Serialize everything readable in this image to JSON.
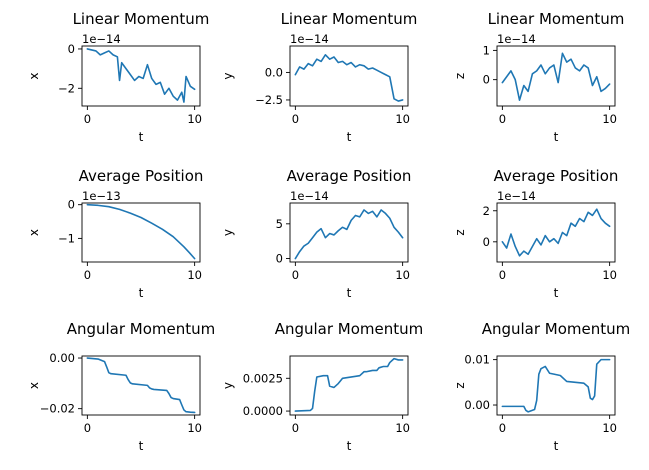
{
  "colors": {
    "series": "#1f77b4",
    "axes": "#000000",
    "background": "#ffffff"
  },
  "chart_data": [
    {
      "type": "line",
      "title": "Linear Momentum",
      "xlabel": "t",
      "ylabel": "x",
      "offset_label": "1e−14",
      "xlim": [
        -0.5,
        10.5
      ],
      "ylim": [
        -2.9,
        0.15
      ],
      "xticks": [
        0,
        10
      ],
      "xtick_labels": [
        "0",
        "10"
      ],
      "yticks": [
        0,
        -2
      ],
      "ytick_labels": [
        "0",
        "−2"
      ],
      "grid": false,
      "series": [
        {
          "x": [
            0,
            0.4,
            0.8,
            1.2,
            1.6,
            2.0,
            2.4,
            2.8,
            3.0,
            3.2,
            3.6,
            4.0,
            4.4,
            4.8,
            5.2,
            5.6,
            6.0,
            6.4,
            6.8,
            7.2,
            7.6,
            8.0,
            8.4,
            8.8,
            9.0,
            9.2,
            9.6,
            10.0
          ],
          "y": [
            0.0,
            -0.05,
            -0.1,
            -0.3,
            -0.2,
            -0.1,
            -0.3,
            -0.4,
            -1.6,
            -0.7,
            -1.0,
            -1.3,
            -1.6,
            -1.4,
            -1.5,
            -0.8,
            -1.5,
            -1.8,
            -1.7,
            -2.3,
            -2.0,
            -2.4,
            -2.6,
            -2.2,
            -2.7,
            -1.4,
            -1.9,
            -2.05
          ]
        }
      ]
    },
    {
      "type": "line",
      "title": "Linear Momentum",
      "xlabel": "t",
      "ylabel": "y",
      "offset_label": "1e−14",
      "xlim": [
        -0.5,
        10.5
      ],
      "ylim": [
        -3.05,
        2.4
      ],
      "xticks": [
        0,
        10
      ],
      "xtick_labels": [
        "0",
        "10"
      ],
      "yticks": [
        0,
        -2.5
      ],
      "ytick_labels": [
        "0.0",
        "−2.5"
      ],
      "grid": false,
      "series": [
        {
          "x": [
            0,
            0.4,
            0.8,
            1.2,
            1.6,
            2.0,
            2.4,
            2.8,
            3.2,
            3.6,
            4.0,
            4.4,
            4.8,
            5.2,
            5.6,
            6.0,
            6.4,
            6.8,
            7.2,
            7.6,
            8.0,
            8.4,
            8.8,
            9.2,
            9.6,
            10.0
          ],
          "y": [
            -0.2,
            0.5,
            0.3,
            0.8,
            0.6,
            1.2,
            1.0,
            1.6,
            1.2,
            1.4,
            0.9,
            1.0,
            0.7,
            0.9,
            0.5,
            0.7,
            0.6,
            0.3,
            0.4,
            0.2,
            0.0,
            -0.2,
            -0.4,
            -2.4,
            -2.6,
            -2.5
          ]
        }
      ]
    },
    {
      "type": "line",
      "title": "Linear Momentum",
      "xlabel": "t",
      "ylabel": "z",
      "offset_label": "1e−14",
      "xlim": [
        -0.5,
        10.5
      ],
      "ylim": [
        -0.9,
        1.15
      ],
      "xticks": [
        0,
        10
      ],
      "xtick_labels": [
        "0",
        "10"
      ],
      "yticks": [
        1,
        0
      ],
      "ytick_labels": [
        "1",
        "0"
      ],
      "grid": false,
      "series": [
        {
          "x": [
            0,
            0.4,
            0.8,
            1.2,
            1.6,
            2.0,
            2.4,
            2.8,
            3.2,
            3.6,
            4.0,
            4.4,
            4.8,
            5.2,
            5.6,
            6.0,
            6.4,
            6.8,
            7.2,
            7.6,
            8.0,
            8.4,
            8.8,
            9.2,
            9.6,
            10.0
          ],
          "y": [
            -0.1,
            0.1,
            0.3,
            0.0,
            -0.7,
            -0.2,
            -0.4,
            0.2,
            0.3,
            0.5,
            0.2,
            0.4,
            0.5,
            -0.1,
            0.9,
            0.6,
            0.7,
            0.4,
            0.3,
            0.5,
            0.4,
            -0.2,
            0.1,
            -0.4,
            -0.3,
            -0.15
          ]
        }
      ]
    },
    {
      "type": "line",
      "title": "Average Position",
      "xlabel": "t",
      "ylabel": "x",
      "offset_label": "1e−13",
      "xlim": [
        -0.5,
        10.5
      ],
      "ylim": [
        -1.7,
        0.05
      ],
      "xticks": [
        0,
        10
      ],
      "xtick_labels": [
        "0",
        "10"
      ],
      "yticks": [
        0,
        -1
      ],
      "ytick_labels": [
        "0",
        "−1"
      ],
      "grid": false,
      "series": [
        {
          "x": [
            0,
            1,
            2,
            3,
            4,
            5,
            6,
            7,
            8,
            9,
            9.5,
            10
          ],
          "y": [
            0.0,
            -0.02,
            -0.06,
            -0.14,
            -0.25,
            -0.38,
            -0.55,
            -0.73,
            -0.95,
            -1.25,
            -1.42,
            -1.6
          ]
        }
      ]
    },
    {
      "type": "line",
      "title": "Average Position",
      "xlabel": "t",
      "ylabel": "y",
      "offset_label": "1e−14",
      "xlim": [
        -0.5,
        10.5
      ],
      "ylim": [
        -0.5,
        8.0
      ],
      "xticks": [
        0,
        10
      ],
      "xtick_labels": [
        "0",
        "10"
      ],
      "yticks": [
        0,
        5
      ],
      "ytick_labels": [
        "0",
        "5"
      ],
      "grid": false,
      "series": [
        {
          "x": [
            0,
            0.4,
            0.8,
            1.2,
            1.6,
            2.0,
            2.4,
            2.8,
            3.2,
            3.6,
            4.0,
            4.4,
            4.8,
            5.2,
            5.6,
            6.0,
            6.4,
            6.8,
            7.2,
            7.6,
            8.0,
            8.4,
            8.8,
            9.2,
            9.6,
            10.0
          ],
          "y": [
            0.0,
            1.0,
            1.8,
            2.2,
            3.0,
            3.8,
            4.3,
            3.0,
            3.6,
            3.4,
            4.0,
            4.5,
            4.2,
            5.5,
            6.2,
            6.0,
            7.0,
            6.5,
            6.8,
            6.0,
            7.0,
            6.5,
            5.8,
            4.5,
            3.8,
            3.0
          ]
        }
      ]
    },
    {
      "type": "line",
      "title": "Average Position",
      "xlabel": "t",
      "ylabel": "z",
      "offset_label": "1e−14",
      "xlim": [
        -0.5,
        10.5
      ],
      "ylim": [
        -1.3,
        2.5
      ],
      "xticks": [
        0,
        10
      ],
      "xtick_labels": [
        "0",
        "10"
      ],
      "yticks": [
        2,
        0
      ],
      "ytick_labels": [
        "2",
        "0"
      ],
      "grid": false,
      "series": [
        {
          "x": [
            0,
            0.4,
            0.8,
            1.2,
            1.6,
            2.0,
            2.4,
            2.8,
            3.2,
            3.6,
            4.0,
            4.4,
            4.8,
            5.2,
            5.6,
            6.0,
            6.4,
            6.8,
            7.2,
            7.6,
            8.0,
            8.4,
            8.8,
            9.2,
            9.6,
            10.0
          ],
          "y": [
            0.0,
            -0.4,
            0.5,
            -0.3,
            -0.9,
            -0.6,
            -0.8,
            -0.3,
            0.2,
            -0.2,
            0.4,
            0.0,
            0.2,
            -0.1,
            0.6,
            0.4,
            1.2,
            1.0,
            1.5,
            1.3,
            1.9,
            1.7,
            2.1,
            1.5,
            1.2,
            1.0
          ]
        }
      ]
    },
    {
      "type": "line",
      "title": "Angular Momentum",
      "xlabel": "t",
      "ylabel": "x",
      "offset_label": "",
      "xlim": [
        -0.5,
        10.5
      ],
      "ylim": [
        -0.0225,
        0.0008
      ],
      "xticks": [
        0,
        10
      ],
      "xtick_labels": [
        "0",
        "10"
      ],
      "yticks": [
        0.0,
        -0.02
      ],
      "ytick_labels": [
        "0.00",
        "−0.02"
      ],
      "grid": false,
      "series": [
        {
          "x": [
            0,
            1.0,
            1.6,
            1.8,
            2.0,
            2.2,
            3.6,
            3.8,
            4.0,
            4.2,
            5.6,
            5.8,
            6.0,
            6.2,
            7.4,
            7.6,
            7.8,
            8.0,
            8.6,
            8.8,
            9.0,
            9.2,
            9.6,
            10.0
          ],
          "y": [
            0.0,
            -0.0004,
            -0.0014,
            -0.0035,
            -0.0058,
            -0.0062,
            -0.0068,
            -0.0085,
            -0.0098,
            -0.0102,
            -0.0108,
            -0.0118,
            -0.0122,
            -0.0124,
            -0.0128,
            -0.014,
            -0.0156,
            -0.016,
            -0.0164,
            -0.0185,
            -0.0205,
            -0.0212,
            -0.0214,
            -0.0215
          ]
        }
      ]
    },
    {
      "type": "line",
      "title": "Angular Momentum",
      "xlabel": "t",
      "ylabel": "y",
      "offset_label": "",
      "xlim": [
        -0.5,
        10.5
      ],
      "ylim": [
        -0.0003,
        0.0042
      ],
      "xticks": [
        0,
        10
      ],
      "xtick_labels": [
        "0",
        "10"
      ],
      "yticks": [
        0.0025,
        0.0
      ],
      "ytick_labels": [
        "0.0025",
        "0.0000"
      ],
      "grid": false,
      "series": [
        {
          "x": [
            0,
            1.4,
            1.6,
            1.8,
            2.0,
            2.6,
            3.0,
            3.2,
            3.6,
            4.0,
            4.4,
            6.0,
            6.4,
            6.6,
            7.2,
            7.6,
            7.8,
            8.2,
            8.6,
            8.8,
            9.2,
            9.6,
            10.0
          ],
          "y": [
            0.0,
            5e-05,
            0.0002,
            0.0015,
            0.0026,
            0.0027,
            0.0027,
            0.0019,
            0.0018,
            0.0021,
            0.0025,
            0.0027,
            0.003,
            0.003,
            0.0031,
            0.0031,
            0.0033,
            0.0034,
            0.0034,
            0.0037,
            0.004,
            0.0039,
            0.0039
          ]
        }
      ]
    },
    {
      "type": "line",
      "title": "Angular Momentum",
      "xlabel": "t",
      "ylabel": "z",
      "offset_label": "",
      "xlim": [
        -0.5,
        10.5
      ],
      "ylim": [
        -0.0022,
        0.0108
      ],
      "xticks": [
        0,
        10
      ],
      "xtick_labels": [
        "0",
        "10"
      ],
      "yticks": [
        0.01,
        0.0
      ],
      "ytick_labels": [
        "0.01",
        "0.00"
      ],
      "grid": false,
      "series": [
        {
          "x": [
            0,
            2.0,
            2.2,
            2.4,
            3.0,
            3.2,
            3.4,
            3.6,
            4.0,
            4.4,
            4.8,
            5.4,
            6.0,
            6.8,
            7.6,
            8.0,
            8.2,
            8.4,
            8.6,
            8.8,
            9.2,
            10.0
          ],
          "y": [
            -0.0003,
            -0.0003,
            -0.0012,
            -0.0015,
            -0.001,
            0.001,
            0.0068,
            0.008,
            0.0085,
            0.007,
            0.0068,
            0.0065,
            0.0052,
            0.005,
            0.0048,
            0.004,
            0.0015,
            0.0012,
            0.002,
            0.009,
            0.01,
            0.01
          ]
        }
      ]
    }
  ]
}
